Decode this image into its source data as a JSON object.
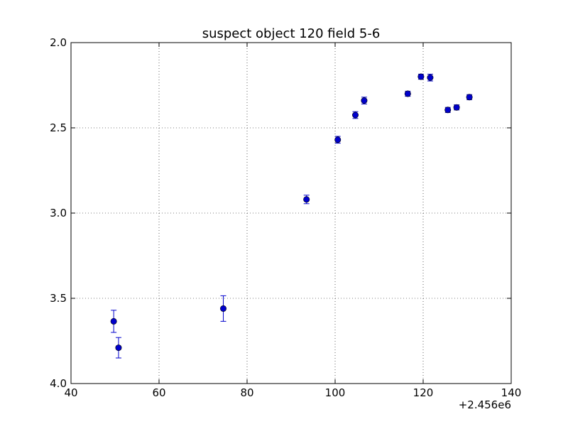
{
  "chart_data": {
    "type": "scatter",
    "title": "suspect object 120 field 5-6",
    "xlabel": "",
    "ylabel": "",
    "x_offset_label": "+2.456e6",
    "xlim": [
      40,
      140
    ],
    "ylim": [
      4.0,
      2.0
    ],
    "y_inverted": true,
    "grid": true,
    "legend": "none",
    "error_bars": true,
    "marker_color": "#0000cc",
    "errorbar_color": "#0000cc",
    "x_ticks": [
      40,
      60,
      80,
      100,
      120,
      140
    ],
    "x_tick_labels": [
      "40",
      "60",
      "80",
      "100",
      "120",
      "140"
    ],
    "y_ticks": [
      2.0,
      2.5,
      3.0,
      3.5,
      4.0
    ],
    "y_tick_labels": [
      "2.0",
      "2.5",
      "3.0",
      "3.5",
      "4.0"
    ],
    "points": [
      {
        "x": 49.7,
        "y": 3.635,
        "err": 0.065
      },
      {
        "x": 50.8,
        "y": 3.79,
        "err": 0.06
      },
      {
        "x": 74.6,
        "y": 3.56,
        "err": 0.075
      },
      {
        "x": 93.5,
        "y": 2.92,
        "err": 0.025
      },
      {
        "x": 100.6,
        "y": 2.57,
        "err": 0.02
      },
      {
        "x": 104.6,
        "y": 2.425,
        "err": 0.02
      },
      {
        "x": 106.6,
        "y": 2.34,
        "err": 0.02
      },
      {
        "x": 116.5,
        "y": 2.3,
        "err": 0.015
      },
      {
        "x": 119.5,
        "y": 2.2,
        "err": 0.015
      },
      {
        "x": 121.6,
        "y": 2.205,
        "err": 0.02
      },
      {
        "x": 125.6,
        "y": 2.395,
        "err": 0.015
      },
      {
        "x": 127.6,
        "y": 2.38,
        "err": 0.015
      },
      {
        "x": 130.5,
        "y": 2.32,
        "err": 0.015
      }
    ]
  }
}
